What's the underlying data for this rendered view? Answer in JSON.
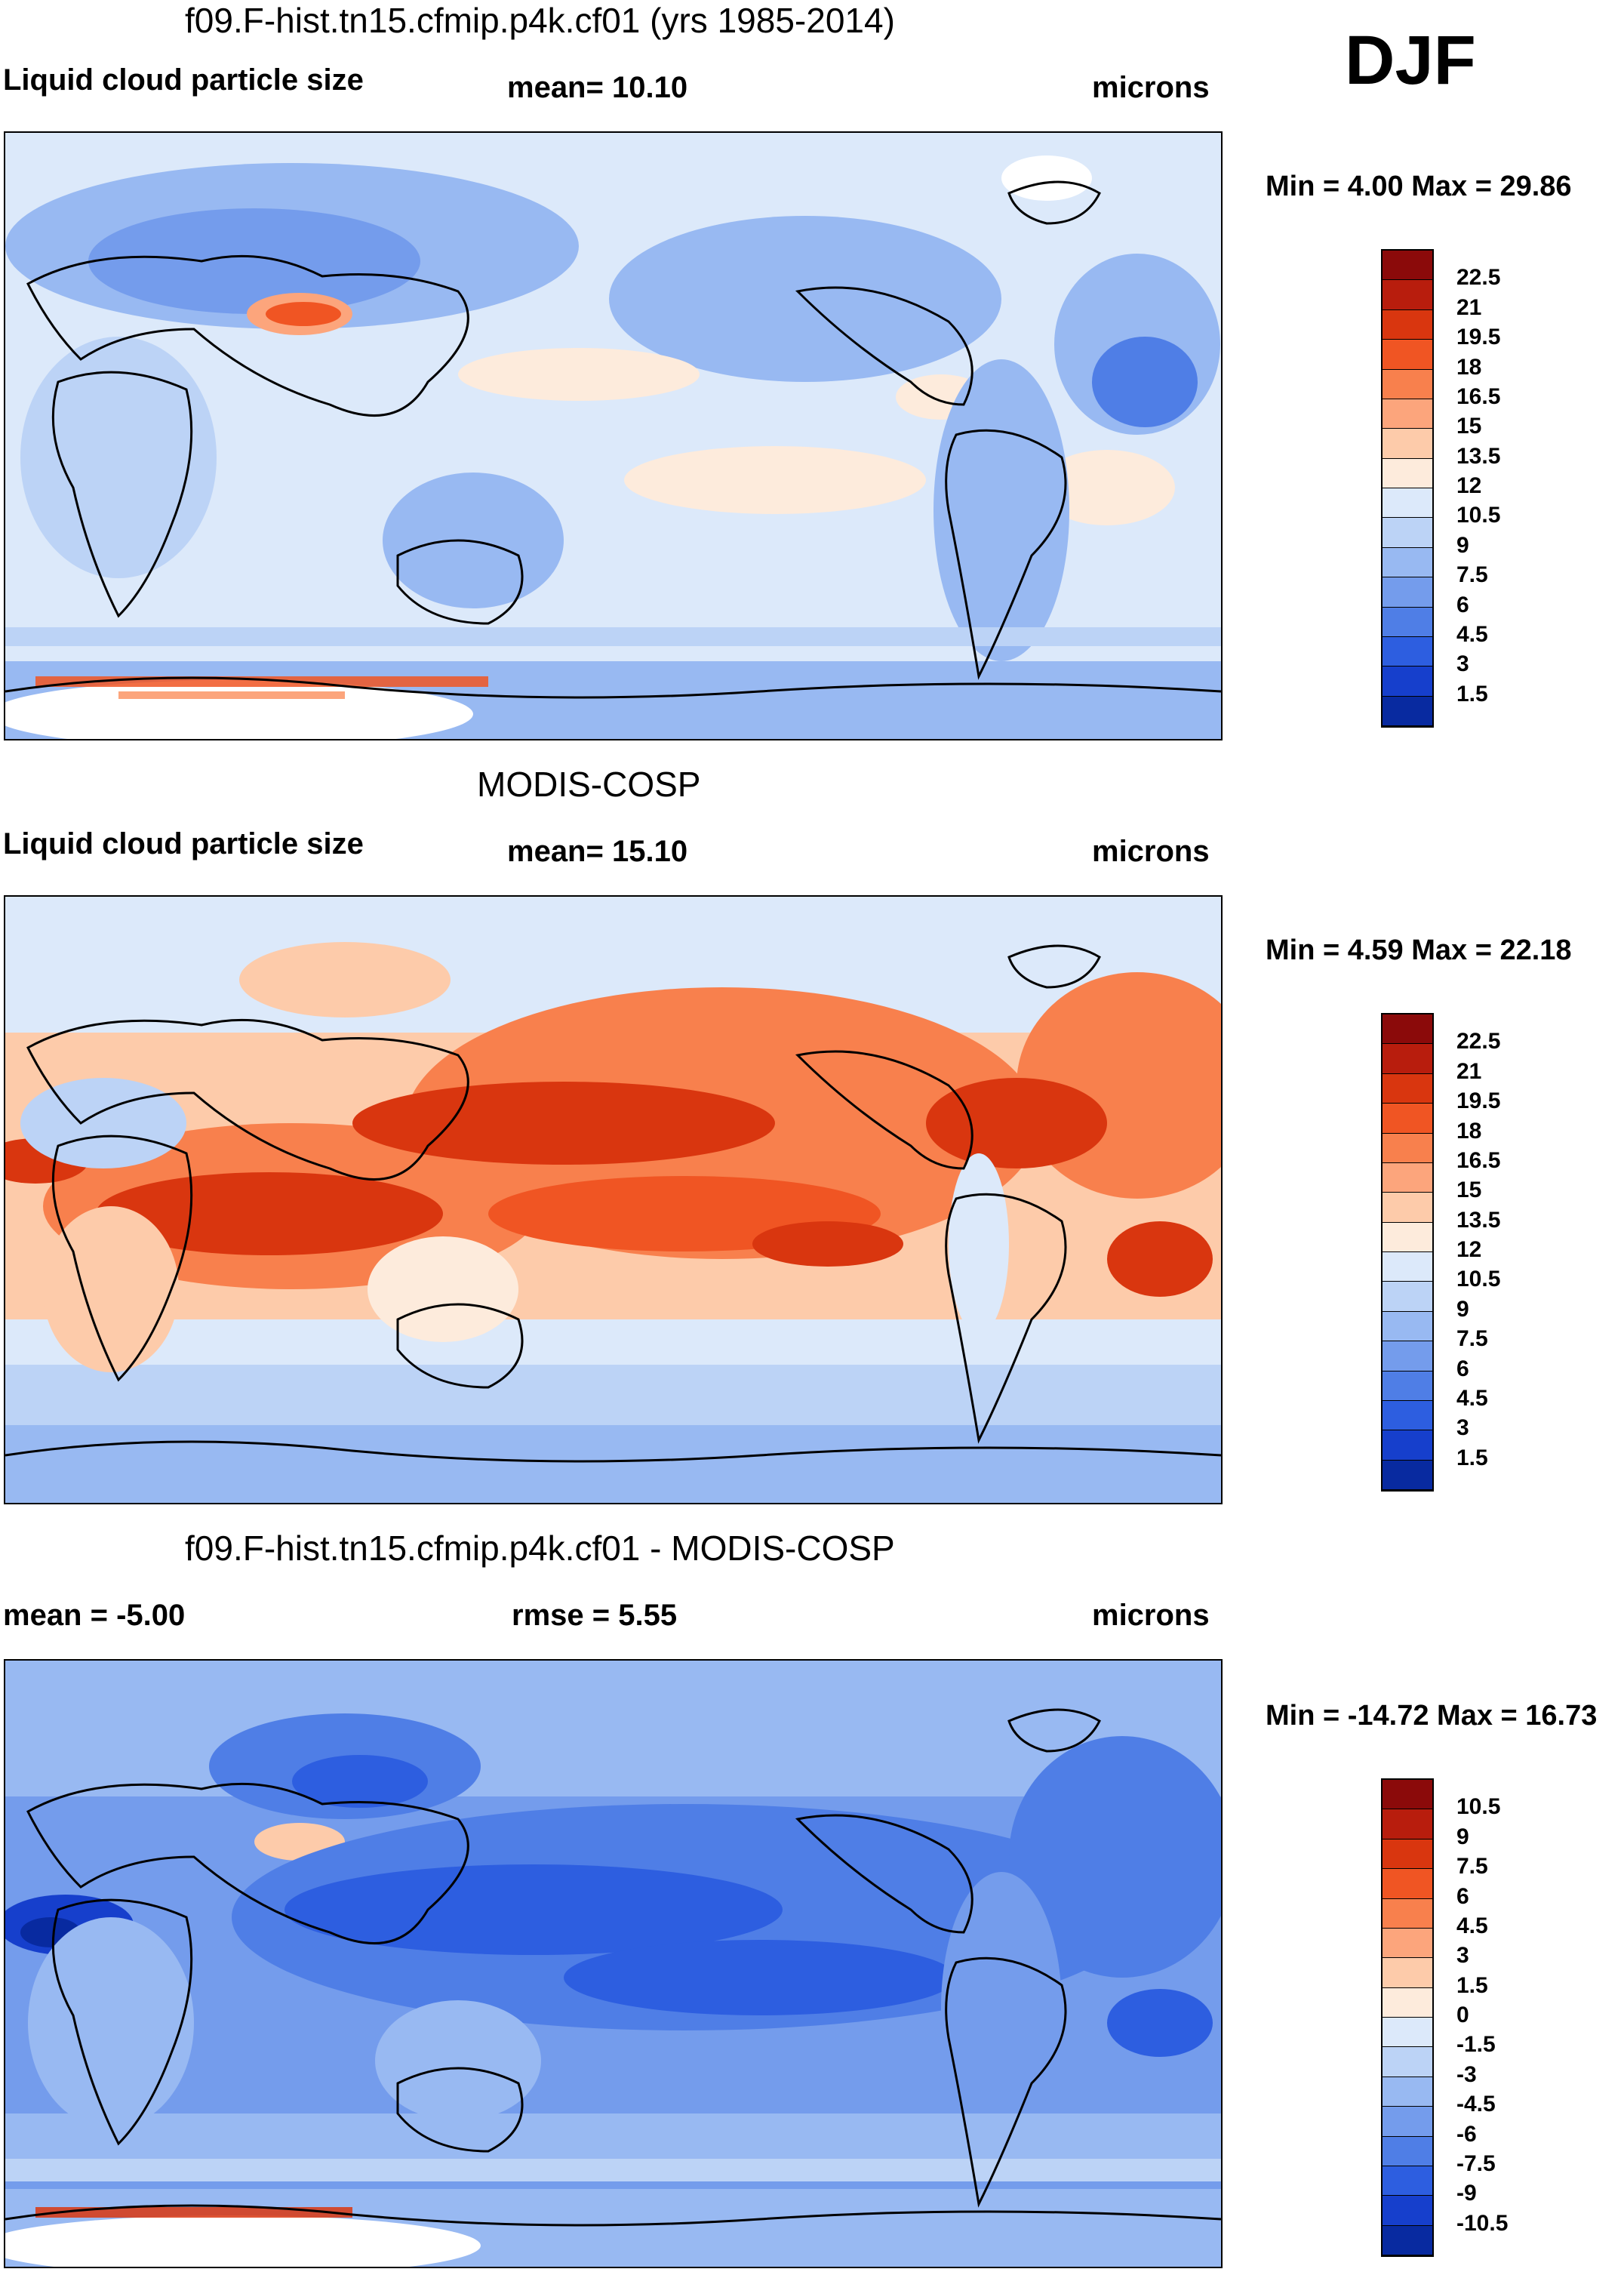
{
  "season": "DJF",
  "panels": [
    {
      "id": "model",
      "title": "f09.F-hist.tn15.cfmip.p4k.cf01 (yrs 1985-2014)",
      "left_label": "Liquid cloud particle size",
      "mid_label": "mean=  10.10",
      "units": "microns",
      "minmax": "Min =   4.00 Max =  29.86",
      "colorbar": {
        "ticks": [
          "22.5",
          "21",
          "19.5",
          "18",
          "16.5",
          "15",
          "13.5",
          "12",
          "10.5",
          "9",
          "7.5",
          "6",
          "4.5",
          "3",
          "1.5"
        ],
        "colors": [
          "#8b0a0a",
          "#b81d0d",
          "#d9360f",
          "#f05523",
          "#f8804d",
          "#fca57c",
          "#fdcbaa",
          "#fdebdc",
          "#dce9fa",
          "#bcd3f6",
          "#98b9f2",
          "#749cec",
          "#4f7ee6",
          "#2d5ee0",
          "#163fcc",
          "#082aa0"
        ]
      }
    },
    {
      "id": "obs",
      "title": "MODIS-COSP",
      "left_label": "Liquid cloud particle size",
      "mid_label": "mean=  15.10",
      "units": "microns",
      "minmax": "Min =   4.59 Max =  22.18",
      "colorbar": {
        "ticks": [
          "22.5",
          "21",
          "19.5",
          "18",
          "16.5",
          "15",
          "13.5",
          "12",
          "10.5",
          "9",
          "7.5",
          "6",
          "4.5",
          "3",
          "1.5"
        ],
        "colors": [
          "#8b0a0a",
          "#b81d0d",
          "#d9360f",
          "#f05523",
          "#f8804d",
          "#fca57c",
          "#fdcbaa",
          "#fdebdc",
          "#dce9fa",
          "#bcd3f6",
          "#98b9f2",
          "#749cec",
          "#4f7ee6",
          "#2d5ee0",
          "#163fcc",
          "#082aa0"
        ]
      }
    },
    {
      "id": "diff",
      "title": "f09.F-hist.tn15.cfmip.p4k.cf01 - MODIS-COSP",
      "left_label": "mean =  -5.00",
      "mid_label": "rmse =   5.55",
      "units": "microns",
      "minmax": "Min = -14.72 Max =  16.73",
      "colorbar": {
        "ticks": [
          "10.5",
          "9",
          "7.5",
          "6",
          "4.5",
          "3",
          "1.5",
          "0",
          "-1.5",
          "-3",
          "-4.5",
          "-6",
          "-7.5",
          "-9",
          "-10.5"
        ],
        "colors": [
          "#8b0a0a",
          "#b81d0d",
          "#d9360f",
          "#f05523",
          "#f8804d",
          "#fca57c",
          "#fdcbaa",
          "#fdebdc",
          "#dce9fa",
          "#bcd3f6",
          "#98b9f2",
          "#749cec",
          "#4f7ee6",
          "#2d5ee0",
          "#163fcc",
          "#082aa0"
        ]
      }
    }
  ]
}
